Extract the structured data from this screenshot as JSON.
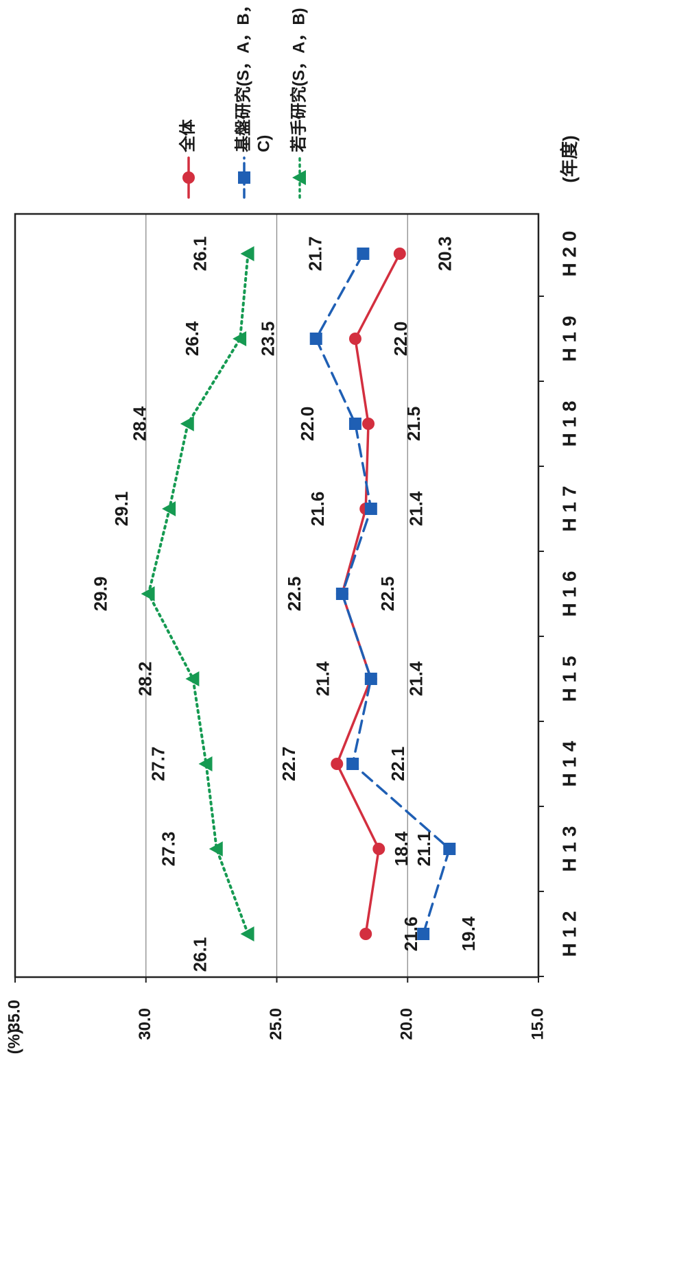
{
  "chart_data": {
    "type": "line",
    "orientation": "rotated-90-ccw",
    "categories": [
      "H12",
      "H13",
      "H14",
      "H15",
      "H16",
      "H17",
      "H18",
      "H19",
      "H20"
    ],
    "category_tick_labels": [
      "H 1 2",
      "H 1 3",
      "H 1 4",
      "H 1 5",
      "H 1 6",
      "H 1 7",
      "H 1 8",
      "H 1 9",
      "H 2 0"
    ],
    "ylim": [
      15.0,
      35.0
    ],
    "yticks": [
      15.0,
      20.0,
      25.0,
      30.0,
      35.0
    ],
    "ytick_labels": [
      "15.0",
      "20.0",
      "25.0",
      "30.0",
      "35.0"
    ],
    "ylabel": "(%)",
    "xlabel": "(年度)",
    "grid": "horizontal",
    "legend": "top-right",
    "series": [
      {
        "name": "全体",
        "color": "#d32f3f",
        "style": "solid",
        "marker": "circle",
        "values": [
          21.6,
          21.1,
          22.7,
          21.4,
          22.5,
          21.6,
          21.5,
          22.0,
          20.3
        ],
        "labels": [
          "21.6",
          "21.1",
          "22.7",
          "21.4",
          "22.5",
          "21.6",
          "21.5",
          "22.0",
          "20.3"
        ]
      },
      {
        "name": "基盤研究(S，A，B，C)",
        "name_lines": [
          "基盤研究(S，A，B，",
          "C)"
        ],
        "color": "#1f5fb4",
        "style": "dashed",
        "marker": "square",
        "values": [
          19.4,
          18.4,
          22.1,
          21.4,
          22.5,
          21.4,
          22.0,
          23.5,
          21.7
        ],
        "labels": [
          "19.4",
          "18.4",
          "22.1",
          "21.4",
          "22.5",
          "21.4",
          "22.0",
          "23.5",
          "21.7"
        ]
      },
      {
        "name": "若手研究(S，A，B)",
        "color": "#169a52",
        "style": "dotted",
        "marker": "triangle",
        "values": [
          26.1,
          27.3,
          27.7,
          28.2,
          29.9,
          29.1,
          28.4,
          26.4,
          26.1
        ],
        "labels": [
          "26.1",
          "27.3",
          "27.7",
          "28.2",
          "29.9",
          "29.1",
          "28.4",
          "26.4",
          "26.1"
        ]
      }
    ]
  }
}
